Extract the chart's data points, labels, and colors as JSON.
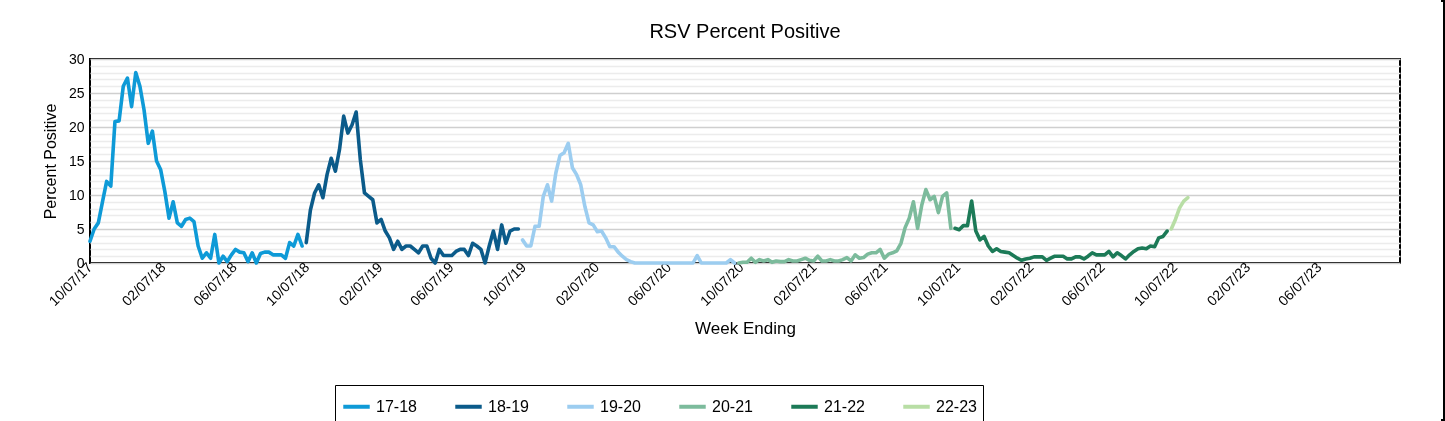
{
  "chart_data": {
    "type": "line",
    "title": "RSV Percent Positive",
    "xlabel": "Week Ending",
    "ylabel": "Percent Positive",
    "xlim": [
      "2017-10-07",
      "2023-10-21"
    ],
    "xticks": [
      {
        "value": "2017-10-07",
        "label": "10/07/17"
      },
      {
        "value": "2018-02-07",
        "label": "02/07/18"
      },
      {
        "value": "2018-06-07",
        "label": "06/07/18"
      },
      {
        "value": "2018-10-07",
        "label": "10/07/18"
      },
      {
        "value": "2019-02-07",
        "label": "02/07/19"
      },
      {
        "value": "2019-06-07",
        "label": "06/07/19"
      },
      {
        "value": "2019-10-07",
        "label": "10/07/19"
      },
      {
        "value": "2020-02-07",
        "label": "02/07/20"
      },
      {
        "value": "2020-06-07",
        "label": "06/07/20"
      },
      {
        "value": "2020-10-07",
        "label": "10/07/20"
      },
      {
        "value": "2021-02-07",
        "label": "02/07/21"
      },
      {
        "value": "2021-06-07",
        "label": "06/07/21"
      },
      {
        "value": "2021-10-07",
        "label": "10/07/21"
      },
      {
        "value": "2022-02-07",
        "label": "02/07/22"
      },
      {
        "value": "2022-06-07",
        "label": "06/07/22"
      },
      {
        "value": "2022-10-07",
        "label": "10/07/22"
      },
      {
        "value": "2023-02-07",
        "label": "02/07/23"
      },
      {
        "value": "2023-06-07",
        "label": "06/07/23"
      }
    ],
    "ylim": [
      0,
      30
    ],
    "yticks": [
      {
        "value": 0,
        "label": "0"
      },
      {
        "value": 1,
        "label": null
      },
      {
        "value": 2,
        "label": null
      },
      {
        "value": 3,
        "label": null
      },
      {
        "value": 4,
        "label": null
      },
      {
        "value": 5,
        "label": "5"
      },
      {
        "value": 6,
        "label": null
      },
      {
        "value": 7,
        "label": null
      },
      {
        "value": 8,
        "label": null
      },
      {
        "value": 9,
        "label": null
      },
      {
        "value": 10,
        "label": "10"
      },
      {
        "value": 11,
        "label": null
      },
      {
        "value": 12,
        "label": null
      },
      {
        "value": 13,
        "label": null
      },
      {
        "value": 14,
        "label": null
      },
      {
        "value": 15,
        "label": "15"
      },
      {
        "value": 16,
        "label": null
      },
      {
        "value": 17,
        "label": null
      },
      {
        "value": 18,
        "label": null
      },
      {
        "value": 19,
        "label": null
      },
      {
        "value": 20,
        "label": "20"
      },
      {
        "value": 21,
        "label": null
      },
      {
        "value": 22,
        "label": null
      },
      {
        "value": 23,
        "label": null
      },
      {
        "value": 24,
        "label": null
      },
      {
        "value": 25,
        "label": "25"
      },
      {
        "value": 26,
        "label": null
      },
      {
        "value": 27,
        "label": null
      },
      {
        "value": 28,
        "label": null
      },
      {
        "value": 29,
        "label": null
      },
      {
        "value": 30,
        "label": "30"
      }
    ],
    "grid": "y",
    "legend": "bottom",
    "line_style": "solid",
    "marker": "none",
    "series": [
      {
        "name": "17-18",
        "color": "#0e9ad7",
        "x": [
          "2017-10-07",
          "2017-10-14",
          "2017-10-21",
          "2017-10-28",
          "2017-11-04",
          "2017-11-11",
          "2017-11-18",
          "2017-11-25",
          "2017-12-02",
          "2017-12-09",
          "2017-12-16",
          "2017-12-23",
          "2017-12-30",
          "2018-01-06",
          "2018-01-13",
          "2018-01-20",
          "2018-01-27",
          "2018-02-03",
          "2018-02-10",
          "2018-02-17",
          "2018-02-24",
          "2018-03-03",
          "2018-03-10",
          "2018-03-17",
          "2018-03-24",
          "2018-03-31",
          "2018-04-07",
          "2018-04-14",
          "2018-04-21",
          "2018-04-28",
          "2018-05-05",
          "2018-05-12",
          "2018-05-19",
          "2018-05-26",
          "2018-06-02",
          "2018-06-09",
          "2018-06-16",
          "2018-06-23",
          "2018-06-30",
          "2018-07-07",
          "2018-07-14",
          "2018-07-21",
          "2018-07-28",
          "2018-08-04",
          "2018-08-11",
          "2018-08-18",
          "2018-08-25",
          "2018-09-01",
          "2018-09-08",
          "2018-09-15",
          "2018-09-22",
          "2018-09-29"
        ],
        "values": [
          3.2,
          5,
          5.9,
          9,
          12,
          11.3,
          20.8,
          20.9,
          26,
          27.2,
          23,
          28,
          26,
          22.5,
          17.6,
          19.4,
          15,
          13.7,
          10.5,
          6.6,
          9,
          5.9,
          5.4,
          6.4,
          6.6,
          6.1,
          2.5,
          0.7,
          1.5,
          0.7,
          4.2,
          0,
          1,
          0.2,
          1.2,
          2,
          1.6,
          1.5,
          0.2,
          1.5,
          0,
          1.4,
          1.6,
          1.6,
          1.2,
          1.2,
          1.2,
          0.7,
          3,
          2.5,
          4.2,
          2.5
        ]
      },
      {
        "name": "18-19",
        "color": "#0b5b8a",
        "x": [
          "2018-10-06",
          "2018-10-13",
          "2018-10-20",
          "2018-10-27",
          "2018-11-03",
          "2018-11-10",
          "2018-11-17",
          "2018-11-24",
          "2018-12-01",
          "2018-12-08",
          "2018-12-15",
          "2018-12-22",
          "2018-12-29",
          "2019-01-05",
          "2019-01-12",
          "2019-01-19",
          "2019-01-26",
          "2019-02-02",
          "2019-02-09",
          "2019-02-16",
          "2019-02-23",
          "2019-03-02",
          "2019-03-09",
          "2019-03-16",
          "2019-03-23",
          "2019-03-30",
          "2019-04-06",
          "2019-04-13",
          "2019-04-20",
          "2019-04-27",
          "2019-05-04",
          "2019-05-11",
          "2019-05-18",
          "2019-05-25",
          "2019-06-01",
          "2019-06-08",
          "2019-06-15",
          "2019-06-22",
          "2019-06-29",
          "2019-07-06",
          "2019-07-13",
          "2019-07-20",
          "2019-07-27",
          "2019-08-03",
          "2019-08-10",
          "2019-08-17",
          "2019-08-24",
          "2019-08-31",
          "2019-09-07",
          "2019-09-14",
          "2019-09-21",
          "2019-09-28"
        ],
        "values": [
          3,
          7.8,
          10.3,
          11.5,
          9.6,
          13,
          15.4,
          13.5,
          16.7,
          21.6,
          19.1,
          20.3,
          22.2,
          15.2,
          10.3,
          9.8,
          9.3,
          5.9,
          6.4,
          4.7,
          3.7,
          2,
          3.2,
          2,
          2.5,
          2.5,
          2,
          1.5,
          2.5,
          2.5,
          0.7,
          0,
          2,
          1.1,
          1.1,
          1.1,
          1.7,
          2,
          2,
          1.1,
          2.9,
          2.5,
          2,
          0,
          2.5,
          4.7,
          2,
          5.6,
          2.9,
          4.7,
          5,
          5
        ]
      },
      {
        "name": "19-20",
        "color": "#9ccdf0",
        "x": [
          "2019-10-05",
          "2019-10-12",
          "2019-10-19",
          "2019-10-26",
          "2019-11-02",
          "2019-11-09",
          "2019-11-16",
          "2019-11-23",
          "2019-11-30",
          "2019-12-07",
          "2019-12-14",
          "2019-12-21",
          "2019-12-28",
          "2020-01-04",
          "2020-01-11",
          "2020-01-18",
          "2020-01-25",
          "2020-02-01",
          "2020-02-08",
          "2020-02-15",
          "2020-02-22",
          "2020-02-29",
          "2020-03-07",
          "2020-03-14",
          "2020-03-21",
          "2020-03-28",
          "2020-04-04",
          "2020-04-11",
          "2020-04-18",
          "2020-04-25",
          "2020-05-02",
          "2020-05-09",
          "2020-05-16",
          "2020-05-23",
          "2020-05-30",
          "2020-06-06",
          "2020-06-13",
          "2020-06-20",
          "2020-06-27",
          "2020-07-04",
          "2020-07-11",
          "2020-07-18",
          "2020-07-25",
          "2020-08-01",
          "2020-08-08",
          "2020-08-15",
          "2020-08-22",
          "2020-08-29",
          "2020-09-05",
          "2020-09-12",
          "2020-09-19",
          "2020-09-26"
        ],
        "values": [
          3.4,
          2.5,
          2.5,
          5.4,
          5.4,
          9.8,
          11.5,
          9.1,
          13.2,
          15.8,
          16.2,
          17.6,
          14,
          13,
          11.5,
          8.3,
          5.9,
          5.6,
          4.6,
          4.7,
          3.7,
          2.4,
          2.4,
          1.6,
          1,
          0.5,
          0.2,
          0,
          0,
          0,
          0,
          0,
          0,
          0,
          0,
          0,
          0,
          0,
          0,
          0,
          0,
          0,
          1.1,
          0,
          0,
          0,
          0,
          0,
          0,
          0,
          0.5,
          0
        ]
      },
      {
        "name": "20-21",
        "color": "#7cbb9c",
        "x": [
          "2020-10-03",
          "2020-10-10",
          "2020-10-17",
          "2020-10-24",
          "2020-10-31",
          "2020-11-07",
          "2020-11-14",
          "2020-11-21",
          "2020-11-28",
          "2020-12-05",
          "2020-12-12",
          "2020-12-19",
          "2020-12-26",
          "2021-01-02",
          "2021-01-09",
          "2021-01-16",
          "2021-01-23",
          "2021-01-30",
          "2021-02-06",
          "2021-02-13",
          "2021-02-20",
          "2021-02-27",
          "2021-03-06",
          "2021-03-13",
          "2021-03-20",
          "2021-03-27",
          "2021-04-03",
          "2021-04-10",
          "2021-04-17",
          "2021-04-24",
          "2021-05-01",
          "2021-05-08",
          "2021-05-15",
          "2021-05-22",
          "2021-05-29",
          "2021-06-05",
          "2021-06-12",
          "2021-06-19",
          "2021-06-26",
          "2021-07-03",
          "2021-07-10",
          "2021-07-17",
          "2021-07-24",
          "2021-07-31",
          "2021-08-07",
          "2021-08-14",
          "2021-08-21",
          "2021-08-28",
          "2021-09-04",
          "2021-09-11",
          "2021-09-18",
          "2021-09-25"
        ],
        "values": [
          0,
          0.1,
          0.1,
          0.7,
          0.1,
          0.5,
          0.3,
          0.5,
          0.1,
          0.3,
          0.2,
          0.2,
          0.5,
          0.3,
          0.3,
          0.5,
          0.7,
          0.4,
          0.3,
          1,
          0.3,
          0.3,
          0.5,
          0.3,
          0.3,
          0.5,
          0.8,
          0.3,
          1.2,
          0.7,
          0.8,
          1.3,
          1.5,
          1.5,
          2,
          0.7,
          1.3,
          1.5,
          1.8,
          2.9,
          5.2,
          6.6,
          9,
          5.1,
          8.5,
          10.8,
          9.3,
          9.8,
          7.4,
          9.8,
          10.3,
          5.1
        ]
      },
      {
        "name": "21-22",
        "color": "#1c7a57",
        "x": [
          "2021-10-02",
          "2021-10-09",
          "2021-10-16",
          "2021-10-23",
          "2021-10-30",
          "2021-11-06",
          "2021-11-13",
          "2021-11-20",
          "2021-11-27",
          "2021-12-04",
          "2021-12-11",
          "2021-12-18",
          "2021-12-25",
          "2022-01-01",
          "2022-01-08",
          "2022-01-15",
          "2022-01-22",
          "2022-01-29",
          "2022-02-05",
          "2022-02-12",
          "2022-02-19",
          "2022-02-26",
          "2022-03-05",
          "2022-03-12",
          "2022-03-19",
          "2022-03-26",
          "2022-04-02",
          "2022-04-09",
          "2022-04-16",
          "2022-04-23",
          "2022-04-30",
          "2022-05-07",
          "2022-05-14",
          "2022-05-21",
          "2022-05-28",
          "2022-06-04",
          "2022-06-11",
          "2022-06-18",
          "2022-06-25",
          "2022-07-02",
          "2022-07-09",
          "2022-07-16",
          "2022-07-23",
          "2022-07-30",
          "2022-08-06",
          "2022-08-13",
          "2022-08-20",
          "2022-08-27",
          "2022-09-03",
          "2022-09-10",
          "2022-09-17",
          "2022-09-24"
        ],
        "values": [
          5.1,
          4.9,
          5.5,
          5.5,
          9.1,
          4.7,
          3.4,
          3.9,
          2.5,
          1.7,
          2.1,
          1.7,
          1.6,
          1.5,
          1.1,
          0.7,
          0.4,
          0.6,
          0.7,
          0.9,
          0.9,
          0.9,
          0.4,
          0.7,
          1,
          1,
          1,
          0.6,
          0.6,
          0.9,
          0.9,
          0.6,
          1,
          1.5,
          1.2,
          1.2,
          1.2,
          1.7,
          0.9,
          1.5,
          1.1,
          0.6,
          1.2,
          1.7,
          2.1,
          2.2,
          2.1,
          2.5,
          2.4,
          3.7,
          3.9,
          4.7
        ]
      },
      {
        "name": "22-23",
        "color": "#b8dea5",
        "x": [
          "2022-10-01",
          "2022-10-08",
          "2022-10-15",
          "2022-10-22",
          "2022-10-29"
        ],
        "values": [
          5,
          6.4,
          8.1,
          9.1,
          9.6
        ]
      }
    ]
  }
}
